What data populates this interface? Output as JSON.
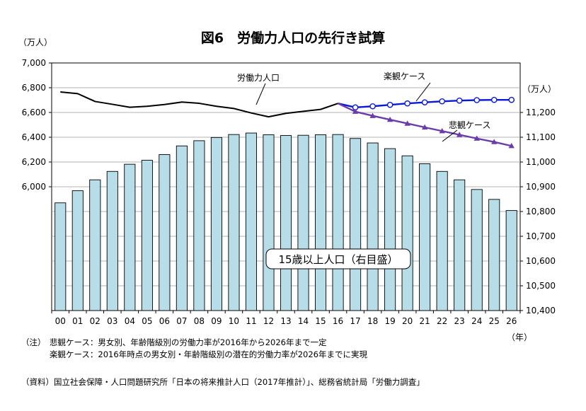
{
  "title": "図6　労働力人口の先行き試算",
  "left_unit": "（万人）",
  "right_unit": "（万人）",
  "x_unit": "（年）",
  "notes": {
    "label": "（注）",
    "lines": [
      "悲観ケース：男女別、年齢階級別の労働力率が2016年から2026年まで一定",
      "楽観ケース：2016年時点の男女別・年齢階級別の潜在的労働力率が2026年までに実現"
    ]
  },
  "source": "（資料）国立社会保障・人口問題研究所「日本の将来推計人口（2017年推計）」、総務省統計局「労働力調査」",
  "chart_data": {
    "type": "bar+line",
    "title": "図6　労働力人口の先行き試算",
    "categories": [
      "00",
      "01",
      "02",
      "03",
      "04",
      "05",
      "06",
      "07",
      "08",
      "09",
      "10",
      "11",
      "12",
      "13",
      "14",
      "15",
      "16",
      "17",
      "18",
      "19",
      "20",
      "21",
      "22",
      "23",
      "24",
      "25",
      "26"
    ],
    "left_axis": {
      "ticks": [
        6000,
        6200,
        6400,
        6600,
        6800,
        7000
      ],
      "tick_labels": [
        "6,000",
        "6,200",
        "6,400",
        "6,600",
        "6,800",
        "7,000"
      ],
      "range": [
        5000,
        7000
      ]
    },
    "right_axis": {
      "ticks": [
        10400,
        10500,
        10600,
        10700,
        10800,
        10900,
        11000,
        11100,
        11200
      ],
      "tick_labels": [
        "10,400",
        "10,500",
        "10,600",
        "10,700",
        "10,800",
        "10,900",
        "11,000",
        "11,100",
        "11,200"
      ],
      "range": [
        10400,
        11400
      ]
    },
    "bar_series": {
      "name": "15歳以上人口（右目盛）",
      "axis": "right",
      "color": "#b7dde8",
      "values": [
        10835,
        10884,
        10928,
        10962,
        10991,
        11007,
        11030,
        11065,
        11086,
        11099,
        11111,
        11117,
        11110,
        11107,
        11108,
        11110,
        11111,
        11095,
        11077,
        11054,
        11025,
        10993,
        10962,
        10928,
        10889,
        10849,
        10804
      ]
    },
    "line_series": [
      {
        "name": "労働力人口",
        "axis": "left",
        "color": "#000000",
        "x_start": "00",
        "values": [
          6766,
          6752,
          6689,
          6666,
          6642,
          6650,
          6664,
          6684,
          6674,
          6650,
          6632,
          6596,
          6565,
          6593,
          6609,
          6625,
          6673
        ]
      },
      {
        "name": "楽観ケース",
        "axis": "left",
        "color": "#0a1ad8",
        "marker": "open-circle",
        "x_start": "16",
        "values": [
          6673,
          6641,
          6650,
          6662,
          6673,
          6682,
          6690,
          6696,
          6700,
          6702,
          6702
        ]
      },
      {
        "name": "悲観ケース",
        "axis": "left",
        "color": "#6a3ca8",
        "marker": "triangle",
        "x_start": "16",
        "values": [
          6673,
          6607,
          6573,
          6542,
          6511,
          6480,
          6450,
          6420,
          6390,
          6362,
          6330
        ]
      }
    ]
  }
}
